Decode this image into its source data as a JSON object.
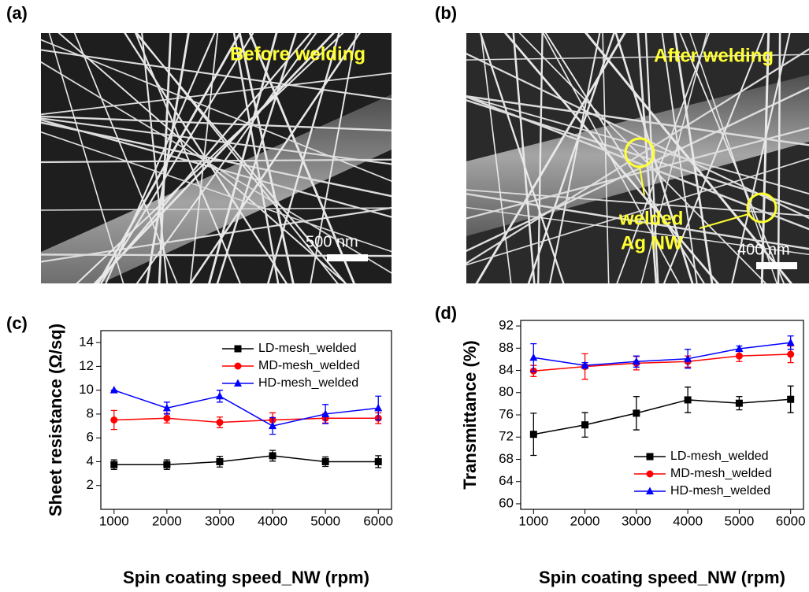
{
  "panels": [
    {
      "label": "(a)",
      "caption": "Before welding",
      "scale_bar": "500 nm"
    },
    {
      "label": "(b)",
      "caption": "After welding",
      "annotation": [
        "welded",
        "Ag NW"
      ],
      "scale_bar": "400 nm"
    }
  ],
  "chart_data": [
    {
      "type": "line",
      "panel_label": "(c)",
      "x_label": "Spin coating speed_NW (rpm)",
      "y_label": "Sheet resistance (Ω/sq)",
      "x": [
        1000,
        2000,
        3000,
        4000,
        5000,
        6000
      ],
      "xlim": [
        750,
        6250
      ],
      "xticks": [
        1000,
        2000,
        3000,
        4000,
        5000,
        6000
      ],
      "ylim": [
        0,
        15
      ],
      "yticks": [
        2,
        4,
        6,
        8,
        10,
        12,
        14
      ],
      "legend": "upper-right",
      "series": [
        {
          "name": "LD-mesh_welded",
          "color": "#000000",
          "marker": "square",
          "values": [
            3.75,
            3.75,
            4.0,
            4.5,
            4.0,
            4.0
          ],
          "errors": [
            0.4,
            0.4,
            0.45,
            0.45,
            0.4,
            0.5
          ]
        },
        {
          "name": "MD-mesh_welded",
          "color": "#ff0000",
          "marker": "circle",
          "values": [
            7.5,
            7.65,
            7.3,
            7.5,
            7.65,
            7.65
          ],
          "errors": [
            0.8,
            0.4,
            0.45,
            0.6,
            0.4,
            0.45
          ]
        },
        {
          "name": "HD-mesh_welded",
          "color": "#0000ff",
          "marker": "triangle",
          "values": [
            10.0,
            8.5,
            9.5,
            7.0,
            8.0,
            8.5
          ],
          "errors": [
            0,
            0.5,
            0.5,
            0.7,
            0.8,
            1.0
          ]
        }
      ]
    },
    {
      "type": "line",
      "panel_label": "(d)",
      "x_label": "Spin coating speed_NW (rpm)",
      "y_label": "Transmittance (%)",
      "x": [
        1000,
        2000,
        3000,
        4000,
        5000,
        6000
      ],
      "xlim": [
        750,
        6250
      ],
      "xticks": [
        1000,
        2000,
        3000,
        4000,
        5000,
        6000
      ],
      "ylim": [
        59,
        93
      ],
      "yticks": [
        60,
        64,
        68,
        72,
        76,
        80,
        84,
        88,
        92
      ],
      "legend": "lower-right",
      "series": [
        {
          "name": "LD-mesh_welded",
          "color": "#000000",
          "marker": "square",
          "values": [
            72.5,
            74.2,
            76.3,
            78.7,
            78.1,
            78.8
          ],
          "errors": [
            3.8,
            2.2,
            3.0,
            2.3,
            1.2,
            2.4
          ]
        },
        {
          "name": "MD-mesh_welded",
          "color": "#ff0000",
          "marker": "circle",
          "values": [
            83.9,
            84.7,
            85.3,
            85.6,
            86.6,
            86.9
          ],
          "errors": [
            1.0,
            2.3,
            1.2,
            1.0,
            1.0,
            1.5
          ]
        },
        {
          "name": "HD-mesh_welded",
          "color": "#0000ff",
          "marker": "triangle",
          "values": [
            86.3,
            84.9,
            85.6,
            86.1,
            87.9,
            89.0
          ],
          "errors": [
            2.5,
            0.5,
            1.0,
            1.7,
            0.5,
            1.2
          ]
        }
      ]
    }
  ]
}
